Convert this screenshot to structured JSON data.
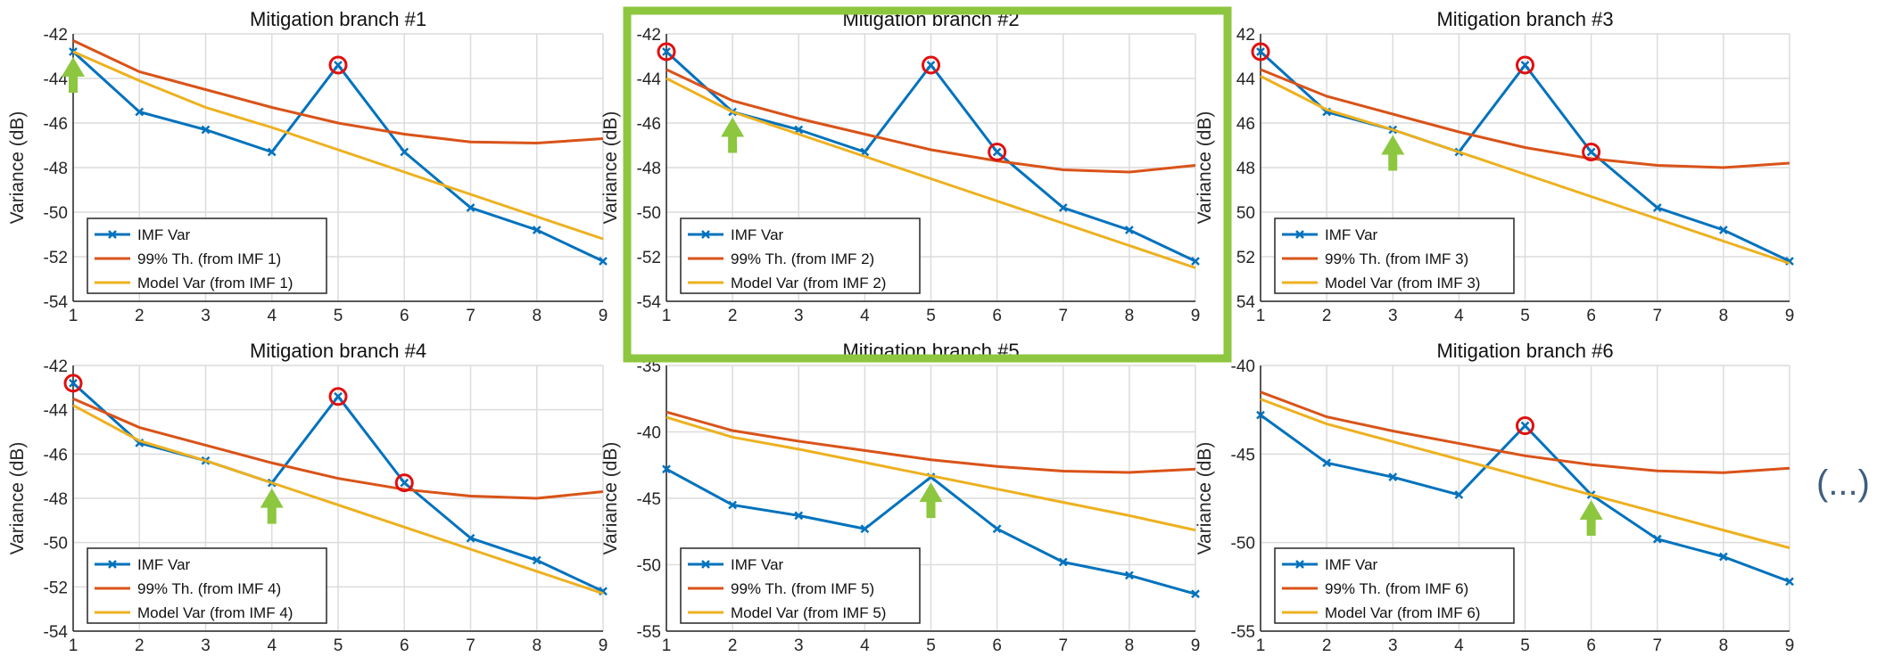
{
  "ellipsis": "(...)",
  "colors": {
    "imf": "#0072BD",
    "threshold": "#D95319",
    "model": "#EDB120",
    "marker_circle": "#E01010",
    "arrow": "#8DC63F",
    "highlight_box": "#8DC63F"
  },
  "highlighted_panel_index": 1,
  "chart_data": [
    {
      "type": "line",
      "title": "Mitigation branch #1",
      "xlabel": "",
      "ylabel": "Variance (dB)",
      "xlim": [
        1,
        9
      ],
      "ylim": [
        -54,
        -42
      ],
      "xticks": [
        1,
        2,
        3,
        4,
        5,
        6,
        7,
        8,
        9
      ],
      "yticks": [
        -54,
        -52,
        -50,
        -48,
        -46,
        -44,
        -42
      ],
      "grid": true,
      "legend_position": "lower-left",
      "x": [
        1,
        2,
        3,
        4,
        5,
        6,
        7,
        8,
        9
      ],
      "series": [
        {
          "name": "IMF Var",
          "values": [
            -42.8,
            -45.5,
            -46.3,
            -47.3,
            -43.4,
            -47.3,
            -49.8,
            -50.8,
            -52.2
          ]
        },
        {
          "name": "99% Th. (from IMF 1)",
          "values": [
            -42.3,
            -43.7,
            -44.5,
            -45.3,
            -46.0,
            -46.5,
            -46.85,
            -46.9,
            -46.7
          ]
        },
        {
          "name": "Model Var (from IMF 1)",
          "values": [
            -42.8,
            -44.1,
            -45.3,
            -46.2,
            -47.2,
            -48.2,
            -49.2,
            -50.2,
            -51.2
          ]
        }
      ],
      "circled_x": [
        5
      ],
      "arrow_x": 1
    },
    {
      "type": "line",
      "title": "Mitigation branch #2",
      "xlabel": "",
      "ylabel": "Variance (dB)",
      "xlim": [
        1,
        9
      ],
      "ylim": [
        -54,
        -42
      ],
      "xticks": [
        1,
        2,
        3,
        4,
        5,
        6,
        7,
        8,
        9
      ],
      "yticks": [
        -54,
        -52,
        -50,
        -48,
        -46,
        -44,
        -42
      ],
      "grid": true,
      "legend_position": "lower-left",
      "x": [
        1,
        2,
        3,
        4,
        5,
        6,
        7,
        8,
        9
      ],
      "series": [
        {
          "name": "IMF Var",
          "values": [
            -42.8,
            -45.5,
            -46.3,
            -47.3,
            -43.4,
            -47.3,
            -49.8,
            -50.8,
            -52.2
          ]
        },
        {
          "name": "99% Th. (from IMF 2)",
          "values": [
            -43.6,
            -45.0,
            -45.8,
            -46.5,
            -47.2,
            -47.7,
            -48.1,
            -48.2,
            -47.9
          ]
        },
        {
          "name": "Model Var (from IMF 2)",
          "values": [
            -44.0,
            -45.5,
            -46.5,
            -47.5,
            -48.5,
            -49.5,
            -50.5,
            -51.5,
            -52.5
          ]
        }
      ],
      "circled_x": [
        1,
        5,
        6
      ],
      "arrow_x": 2
    },
    {
      "type": "line",
      "title": "Mitigation branch #3",
      "xlabel": "",
      "ylabel": "Variance (dB)",
      "xlim": [
        1,
        9
      ],
      "ylim": [
        -54,
        -42
      ],
      "xticks": [
        1,
        2,
        3,
        4,
        5,
        6,
        7,
        8,
        9
      ],
      "yticks": [
        -54,
        -52,
        -50,
        -48,
        -46,
        -44,
        -42
      ],
      "ytick_labels": [
        "54",
        "52",
        "50",
        "48",
        "46",
        "44",
        "42"
      ],
      "grid": true,
      "legend_position": "lower-left",
      "x": [
        1,
        2,
        3,
        4,
        5,
        6,
        7,
        8,
        9
      ],
      "series": [
        {
          "name": "IMF Var",
          "values": [
            -42.8,
            -45.5,
            -46.3,
            -47.3,
            -43.4,
            -47.3,
            -49.8,
            -50.8,
            -52.2
          ]
        },
        {
          "name": "99% Th. (from IMF 3)",
          "values": [
            -43.6,
            -44.8,
            -45.6,
            -46.4,
            -47.1,
            -47.6,
            -47.9,
            -48.0,
            -47.8
          ]
        },
        {
          "name": "Model Var (from IMF 3)",
          "values": [
            -43.9,
            -45.4,
            -46.3,
            -47.3,
            -48.3,
            -49.3,
            -50.3,
            -51.3,
            -52.3
          ]
        }
      ],
      "circled_x": [
        1,
        5,
        6
      ],
      "arrow_x": 3
    },
    {
      "type": "line",
      "title": "Mitigation branch #4",
      "xlabel": "",
      "ylabel": "Variance (dB)",
      "xlim": [
        1,
        9
      ],
      "ylim": [
        -54,
        -42
      ],
      "xticks": [
        1,
        2,
        3,
        4,
        5,
        6,
        7,
        8,
        9
      ],
      "yticks": [
        -54,
        -52,
        -50,
        -48,
        -46,
        -44,
        -42
      ],
      "grid": true,
      "legend_position": "lower-left",
      "x": [
        1,
        2,
        3,
        4,
        5,
        6,
        7,
        8,
        9
      ],
      "series": [
        {
          "name": "IMF Var",
          "values": [
            -42.8,
            -45.5,
            -46.3,
            -47.3,
            -43.4,
            -47.3,
            -49.8,
            -50.8,
            -52.2
          ]
        },
        {
          "name": "99% Th. (from IMF 4)",
          "values": [
            -43.5,
            -44.8,
            -45.6,
            -46.4,
            -47.1,
            -47.6,
            -47.9,
            -48.0,
            -47.7
          ]
        },
        {
          "name": "Model Var (from IMF 4)",
          "values": [
            -43.8,
            -45.4,
            -46.3,
            -47.3,
            -48.3,
            -49.3,
            -50.3,
            -51.3,
            -52.3
          ]
        }
      ],
      "circled_x": [
        1,
        5,
        6
      ],
      "arrow_x": 4
    },
    {
      "type": "line",
      "title": "Mitigation branch #5",
      "xlabel": "",
      "ylabel": "Variance (dB)",
      "xlim": [
        1,
        9
      ],
      "ylim": [
        -55,
        -35
      ],
      "xticks": [
        1,
        2,
        3,
        4,
        5,
        6,
        7,
        8,
        9
      ],
      "yticks": [
        -55,
        -50,
        -45,
        -40,
        -35
      ],
      "grid": true,
      "legend_position": "lower-left",
      "x": [
        1,
        2,
        3,
        4,
        5,
        6,
        7,
        8,
        9
      ],
      "series": [
        {
          "name": "IMF Var",
          "values": [
            -42.8,
            -45.5,
            -46.3,
            -47.3,
            -43.4,
            -47.3,
            -49.8,
            -50.8,
            -52.2
          ]
        },
        {
          "name": "99% Th. (from IMF 5)",
          "values": [
            -38.5,
            -39.9,
            -40.7,
            -41.4,
            -42.1,
            -42.6,
            -42.95,
            -43.05,
            -42.8
          ]
        },
        {
          "name": "Model Var (from IMF 5)",
          "values": [
            -38.9,
            -40.4,
            -41.3,
            -42.3,
            -43.3,
            -44.3,
            -45.3,
            -46.3,
            -47.4
          ]
        }
      ],
      "circled_x": [],
      "arrow_x": 5
    },
    {
      "type": "line",
      "title": "Mitigation branch #6",
      "xlabel": "",
      "ylabel": "Variance (dB)",
      "xlim": [
        1,
        9
      ],
      "ylim": [
        -55,
        -40
      ],
      "xticks": [
        1,
        2,
        3,
        4,
        5,
        6,
        7,
        8,
        9
      ],
      "yticks": [
        -55,
        -50,
        -45,
        -40
      ],
      "grid": true,
      "legend_position": "lower-left",
      "x": [
        1,
        2,
        3,
        4,
        5,
        6,
        7,
        8,
        9
      ],
      "series": [
        {
          "name": "IMF Var",
          "values": [
            -42.8,
            -45.5,
            -46.3,
            -47.3,
            -43.4,
            -47.3,
            -49.8,
            -50.8,
            -52.2
          ]
        },
        {
          "name": "99% Th. (from IMF 6)",
          "values": [
            -41.5,
            -42.9,
            -43.7,
            -44.4,
            -45.1,
            -45.6,
            -45.95,
            -46.05,
            -45.8
          ]
        },
        {
          "name": "Model Var (from IMF 6)",
          "values": [
            -41.9,
            -43.3,
            -44.3,
            -45.3,
            -46.3,
            -47.3,
            -48.3,
            -49.3,
            -50.3
          ]
        }
      ],
      "circled_x": [
        5
      ],
      "arrow_x": 6
    }
  ]
}
